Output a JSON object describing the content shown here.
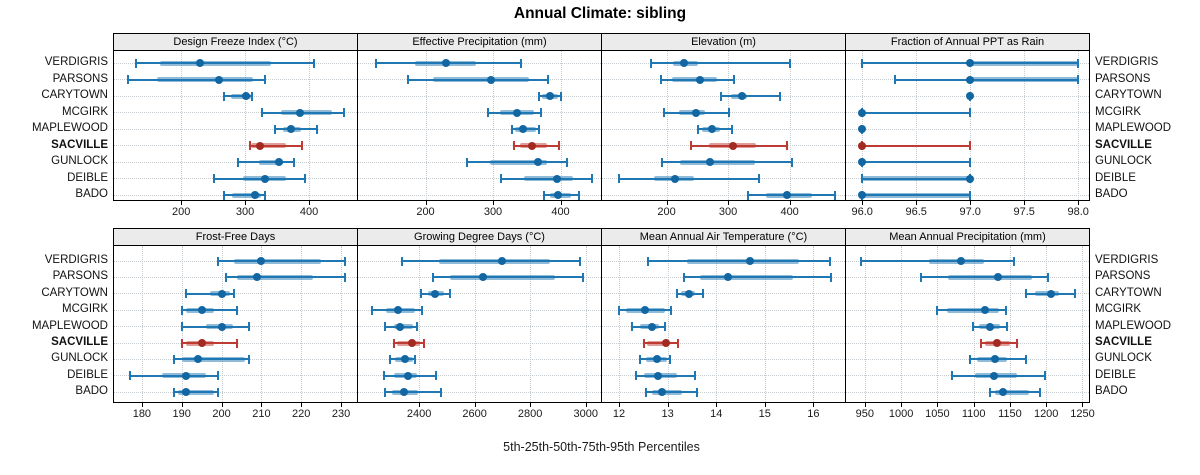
{
  "title": "Annual Climate: sibling",
  "xlabel": "5th-25th-50th-75th-95th Percentiles",
  "stations": [
    "VERDIGRIS",
    "PARSONS",
    "CARYTOWN",
    "MCGIRK",
    "MAPLEWOOD",
    "SACVILLE",
    "GUNLOCK",
    "DEIBLE",
    "BADO"
  ],
  "highlight_station": "SACVILLE",
  "percentiles": [
    5,
    25,
    50,
    75,
    95
  ],
  "colors": {
    "series": "#1f77b4",
    "series_dot": "#1266a2",
    "highlight": "#bd3b32",
    "highlight_dot": "#a22a20",
    "strip_bg": "#ebebeb",
    "grid": "#c7ccd1",
    "border": "#000000"
  },
  "chart_data": [
    {
      "type": "interval-dotplot",
      "panel": "Design Freeze Index (°C)",
      "xlim": [
        95,
        475
      ],
      "ticks": [
        200,
        300,
        400
      ],
      "tick_labels": [
        "200",
        "300",
        "400"
      ],
      "series": {
        "VERDIGRIS": [
          129,
          167,
          230,
          341,
          407
        ],
        "PARSONS": [
          117,
          162,
          259,
          313,
          331
        ],
        "CARYTOWN": [
          267,
          278,
          301,
          309,
          311
        ],
        "MCGIRK": [
          327,
          356,
          386,
          436,
          454
        ],
        "MAPLEWOOD": [
          346,
          359,
          372,
          387,
          412
        ],
        "SACVILLE": [
          307,
          310,
          323,
          364,
          389
        ],
        "GUNLOCK": [
          289,
          321,
          353,
          359,
          376
        ],
        "DEIBLE": [
          252,
          297,
          331,
          364,
          394
        ],
        "BADO": [
          267,
          280,
          315,
          325,
          331
        ]
      }
    },
    {
      "type": "interval-dotplot",
      "panel": "Effective Precipitation (mm)",
      "xlim": [
        100,
        460
      ],
      "ticks": [
        200,
        300,
        400
      ],
      "tick_labels": [
        "200",
        "300",
        "400"
      ],
      "series": {
        "VERDIGRIS": [
          126,
          185,
          230,
          275,
          341
        ],
        "PARSONS": [
          174,
          211,
          297,
          353,
          381
        ],
        "CARYTOWN": [
          368,
          372,
          385,
          396,
          401
        ],
        "MCGIRK": [
          292,
          310,
          336,
          361,
          371
        ],
        "MAPLEWOOD": [
          328,
          333,
          345,
          363,
          368
        ],
        "SACVILLE": [
          331,
          340,
          358,
          380,
          398
        ],
        "GUNLOCK": [
          262,
          296,
          366,
          380,
          409
        ],
        "DEIBLE": [
          312,
          346,
          395,
          419,
          446
        ],
        "BADO": [
          375,
          385,
          397,
          415,
          427
        ]
      }
    },
    {
      "type": "interval-dotplot",
      "panel": "Elevation (m)",
      "xlim": [
        95,
        490
      ],
      "ticks": [
        200,
        300,
        400
      ],
      "tick_labels": [
        "200",
        "300",
        "400"
      ],
      "series": {
        "VERDIGRIS": [
          174,
          210,
          228,
          251,
          400
        ],
        "PARSONS": [
          191,
          209,
          255,
          282,
          310
        ],
        "CARYTOWN": [
          289,
          305,
          323,
          330,
          384
        ],
        "MCGIRK": [
          196,
          220,
          248,
          262,
          302
        ],
        "MAPLEWOOD": [
          251,
          258,
          273,
          287,
          307
        ],
        "SACVILLE": [
          239,
          269,
          308,
          345,
          396
        ],
        "GUNLOCK": [
          193,
          222,
          271,
          343,
          404
        ],
        "DEIBLE": [
          122,
          180,
          214,
          245,
          351
        ],
        "BADO": [
          333,
          362,
          395,
          436,
          473
        ]
      }
    },
    {
      "type": "interval-dotplot",
      "panel": "Fraction of Annual PPT as Rain",
      "xlim": [
        95.85,
        98.1
      ],
      "ticks": [
        96.0,
        96.5,
        97.0,
        97.5,
        98.0
      ],
      "tick_labels": [
        "96.0",
        "96.5",
        "97.0",
        "97.5",
        "98.0"
      ],
      "series": {
        "VERDIGRIS": [
          96,
          97,
          97,
          98,
          98
        ],
        "PARSONS": [
          96.3,
          97,
          97,
          98,
          98
        ],
        "CARYTOWN": [
          97,
          97,
          97,
          97,
          97
        ],
        "MCGIRK": [
          96,
          96,
          96,
          96,
          97
        ],
        "MAPLEWOOD": [
          96,
          96,
          96,
          96,
          96
        ],
        "SACVILLE": [
          96,
          96,
          96,
          96,
          97
        ],
        "GUNLOCK": [
          96,
          96,
          96,
          96,
          97
        ],
        "DEIBLE": [
          96,
          96,
          97,
          97,
          97
        ],
        "BADO": [
          96,
          96,
          96,
          97,
          97
        ]
      }
    },
    {
      "type": "interval-dotplot",
      "panel": "Frost-Free Days",
      "xlim": [
        173,
        234
      ],
      "ticks": [
        180,
        190,
        200,
        210,
        220,
        230
      ],
      "tick_labels": [
        "180",
        "190",
        "200",
        "210",
        "220",
        "230"
      ],
      "series": {
        "VERDIGRIS": [
          199,
          203,
          210,
          225,
          231
        ],
        "PARSONS": [
          201,
          204,
          209,
          223,
          231
        ],
        "CARYTOWN": [
          191,
          197,
          200,
          202,
          203
        ],
        "MCGIRK": [
          190,
          191,
          195,
          198,
          204
        ],
        "MAPLEWOOD": [
          190,
          196,
          200,
          203,
          207
        ],
        "SACVILLE": [
          190,
          191,
          195,
          198,
          204
        ],
        "GUNLOCK": [
          188,
          190,
          194,
          206,
          207
        ],
        "DEIBLE": [
          177,
          185,
          191,
          196,
          199
        ],
        "BADO": [
          188,
          189,
          191,
          198,
          199
        ]
      }
    },
    {
      "type": "interval-dotplot",
      "panel": "Growing Degree Days (°C)",
      "xlim": [
        2180,
        3055
      ],
      "ticks": [
        2400,
        2600,
        2800,
        3000
      ],
      "tick_labels": [
        "2400",
        "2600",
        "2800",
        "3000"
      ],
      "series": {
        "VERDIGRIS": [
          2340,
          2470,
          2700,
          2870,
          2980
        ],
        "PARSONS": [
          2450,
          2510,
          2630,
          2890,
          2990
        ],
        "CARYTOWN": [
          2408,
          2432,
          2459,
          2490,
          2512
        ],
        "MCGIRK": [
          2232,
          2280,
          2325,
          2385,
          2410
        ],
        "MAPLEWOOD": [
          2276,
          2308,
          2332,
          2379,
          2391
        ],
        "SACVILLE": [
          2308,
          2320,
          2375,
          2402,
          2418
        ],
        "GUNLOCK": [
          2294,
          2314,
          2349,
          2379,
          2385
        ],
        "DEIBLE": [
          2273,
          2308,
          2361,
          2391,
          2461
        ],
        "BADO": [
          2279,
          2302,
          2346,
          2396,
          2479
        ]
      }
    },
    {
      "type": "interval-dotplot",
      "panel": "Mean Annual Air Temperature (°C)",
      "xlim": [
        11.65,
        16.65
      ],
      "ticks": [
        12,
        13,
        14,
        15,
        16
      ],
      "tick_labels": [
        "12",
        "13",
        "14",
        "15",
        "16"
      ],
      "series": {
        "VERDIGRIS": [
          12.6,
          13.4,
          14.7,
          15.7,
          16.35
        ],
        "PARSONS": [
          13.33,
          13.67,
          14.25,
          15.58,
          16.37
        ],
        "CARYTOWN": [
          13.2,
          13.27,
          13.43,
          13.57,
          13.72
        ],
        "MCGIRK": [
          12.0,
          12.15,
          12.53,
          12.95,
          13.08
        ],
        "MAPLEWOOD": [
          12.27,
          12.44,
          12.68,
          12.82,
          12.95
        ],
        "SACVILLE": [
          12.51,
          12.58,
          12.97,
          13.02,
          13.21
        ],
        "GUNLOCK": [
          12.43,
          12.55,
          12.78,
          12.99,
          13.04
        ],
        "DEIBLE": [
          12.34,
          12.51,
          12.8,
          13.19,
          13.56
        ],
        "BADO": [
          12.55,
          12.68,
          12.89,
          13.3,
          13.6
        ]
      }
    },
    {
      "type": "interval-dotplot",
      "panel": "Mean Annual Precipitation (mm)",
      "xlim": [
        924,
        1259
      ],
      "ticks": [
        950,
        1000,
        1050,
        1100,
        1150,
        1200,
        1250
      ],
      "tick_labels": [
        "950",
        "1000",
        "1050",
        "1100",
        "1150",
        "1200",
        "1250"
      ],
      "series": {
        "VERDIGRIS": [
          944,
          1038,
          1082,
          1114,
          1155
        ],
        "PARSONS": [
          1028,
          1065,
          1133,
          1180,
          1203
        ],
        "CARYTOWN": [
          1172,
          1185,
          1206,
          1218,
          1240
        ],
        "MCGIRK": [
          1050,
          1063,
          1116,
          1135,
          1145
        ],
        "MAPLEWOOD": [
          1099,
          1107,
          1122,
          1137,
          1146
        ],
        "SACVILLE": [
          1110,
          1116,
          1132,
          1150,
          1160
        ],
        "GUNLOCK": [
          1095,
          1105,
          1129,
          1146,
          1172
        ],
        "DEIBLE": [
          1070,
          1102,
          1128,
          1160,
          1198
        ],
        "BADO": [
          1122,
          1130,
          1141,
          1176,
          1191
        ]
      }
    }
  ]
}
